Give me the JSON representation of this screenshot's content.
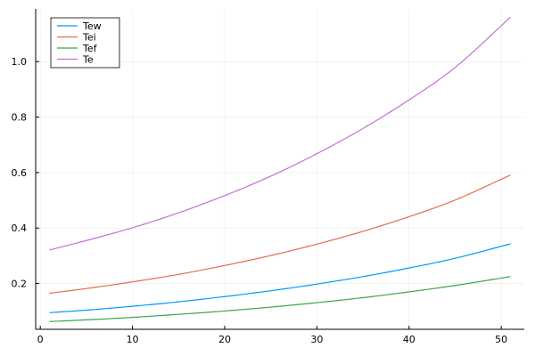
{
  "chart_data": {
    "type": "line",
    "title": "",
    "xlabel": "",
    "ylabel": "",
    "xlim": [
      -0.5,
      52.5
    ],
    "ylim": [
      0.035,
      1.19
    ],
    "grid": true,
    "legend_position": "top-left",
    "x_ticks": [
      0,
      10,
      20,
      30,
      40,
      50
    ],
    "y_ticks": [
      0.2,
      0.4,
      0.6,
      0.8,
      1.0
    ],
    "x_tick_labels": [
      "0",
      "10",
      "20",
      "30",
      "40",
      "50"
    ],
    "y_tick_labels": [
      "0.2",
      "0.4",
      "0.6",
      "0.8",
      "1.0"
    ],
    "x": [
      1,
      5,
      10,
      15,
      20,
      25,
      30,
      35,
      40,
      45,
      51
    ],
    "series": [
      {
        "name": "Tew",
        "color": "#009AFA",
        "values": [
          0.095,
          0.104,
          0.118,
          0.134,
          0.153,
          0.174,
          0.198,
          0.225,
          0.256,
          0.291,
          0.343
        ]
      },
      {
        "name": "Tei",
        "color": "#E36F47",
        "values": [
          0.165,
          0.182,
          0.206,
          0.233,
          0.265,
          0.301,
          0.342,
          0.388,
          0.441,
          0.501,
          0.591
        ]
      },
      {
        "name": "Tef",
        "color": "#3EA44E",
        "values": [
          0.063,
          0.069,
          0.078,
          0.089,
          0.101,
          0.115,
          0.131,
          0.149,
          0.17,
          0.193,
          0.225
        ]
      },
      {
        "name": "Te",
        "color": "#C371D2",
        "values": [
          0.321,
          0.355,
          0.401,
          0.455,
          0.517,
          0.587,
          0.668,
          0.759,
          0.862,
          0.979,
          1.16
        ]
      }
    ]
  }
}
